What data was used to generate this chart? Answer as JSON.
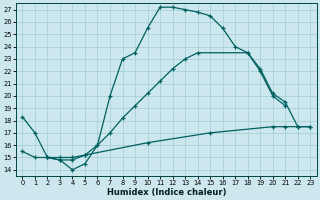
{
  "xlabel": "Humidex (Indice chaleur)",
  "bg_color": "#cce8ee",
  "grid_color": "#a8d0d8",
  "line_color": "#006060",
  "xlim": [
    -0.5,
    23.5
  ],
  "ylim": [
    13.5,
    27.5
  ],
  "xticks": [
    0,
    1,
    2,
    3,
    4,
    5,
    6,
    7,
    8,
    9,
    10,
    11,
    12,
    13,
    14,
    15,
    16,
    17,
    18,
    19,
    20,
    21,
    22,
    23
  ],
  "yticks": [
    14,
    15,
    16,
    17,
    18,
    19,
    20,
    21,
    22,
    23,
    24,
    25,
    26,
    27
  ],
  "line1_x": [
    0,
    1,
    2,
    3,
    4,
    5,
    6,
    7,
    8,
    9,
    10,
    11,
    12,
    13,
    14,
    15,
    16,
    17,
    18,
    19,
    20,
    21
  ],
  "line1_y": [
    18.3,
    17.0,
    15.0,
    14.8,
    14.0,
    14.5,
    16.0,
    20.0,
    23.0,
    23.5,
    25.5,
    27.2,
    27.2,
    27.0,
    26.8,
    26.5,
    25.5,
    24.0,
    23.5,
    22.0,
    20.0,
    19.2
  ],
  "line2_x": [
    2,
    3,
    4,
    5,
    6,
    7,
    8,
    9,
    10,
    11,
    12,
    13,
    14,
    18,
    19,
    20,
    21,
    22,
    23
  ],
  "line2_y": [
    15.0,
    14.8,
    14.8,
    15.2,
    16.0,
    17.0,
    18.2,
    19.2,
    20.2,
    21.2,
    22.2,
    23.0,
    23.5,
    23.5,
    22.2,
    20.2,
    19.5,
    17.5,
    17.5
  ],
  "line3_x": [
    0,
    1,
    2,
    3,
    4,
    5,
    10,
    15,
    20,
    21,
    22,
    23
  ],
  "line3_y": [
    15.5,
    15.0,
    15.0,
    15.0,
    15.0,
    15.2,
    16.2,
    17.0,
    17.5,
    17.5,
    17.5,
    17.5
  ]
}
